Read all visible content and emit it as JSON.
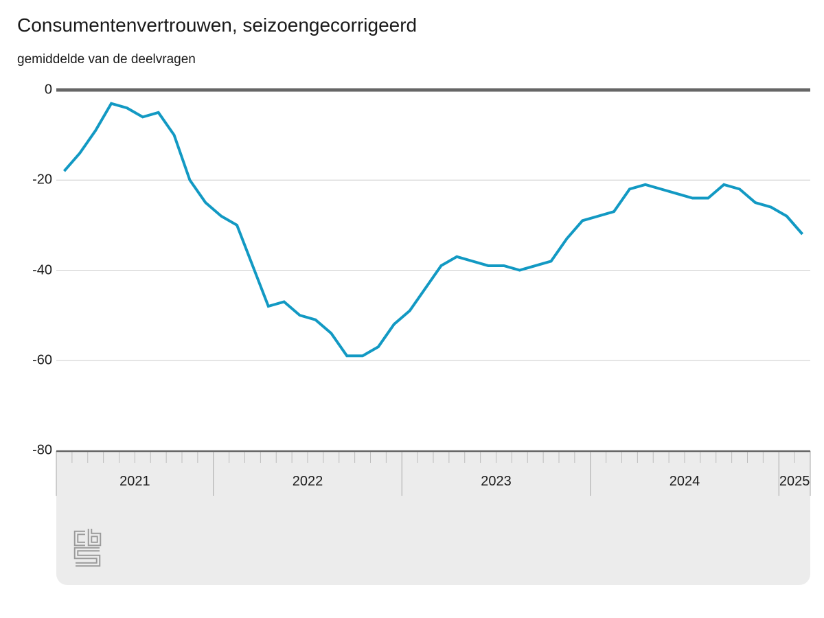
{
  "header": {
    "title": "Consumentenvertrouwen, seizoengecorrigeerd",
    "subtitle": "gemiddelde van de deelvragen"
  },
  "chart_data": {
    "type": "line",
    "title": "Consumentenvertrouwen, seizoengecorrigeerd",
    "subtitle": "gemiddelde van de deelvragen",
    "x_start": "2021-03",
    "x_end": "2025-02",
    "years": [
      {
        "label": "2021",
        "months": 10
      },
      {
        "label": "2022",
        "months": 12
      },
      {
        "label": "2023",
        "months": 12
      },
      {
        "label": "2024",
        "months": 12
      },
      {
        "label": "2025",
        "months": 2
      }
    ],
    "series": [
      {
        "name": "consumentenvertrouwen",
        "color": "#1299c3",
        "values": [
          -18,
          -14,
          -9,
          -3,
          -4,
          -6,
          -5,
          -10,
          -20,
          -25,
          -28,
          -30,
          -39,
          -48,
          -47,
          -50,
          -51,
          -54,
          -59,
          -59,
          -57,
          -52,
          -49,
          -44,
          -39,
          -37,
          -38,
          -39,
          -39,
          -40,
          -39,
          -38,
          -33,
          -29,
          -28,
          -27,
          -22,
          -21,
          -22,
          -23,
          -24,
          -24,
          -21,
          -22,
          -25,
          -26,
          -28,
          -32
        ]
      }
    ],
    "y_ticks": [
      0,
      -20,
      -40,
      -60,
      -80
    ],
    "ylim": [
      -80,
      0
    ],
    "grid": "horizontal",
    "zero_line": true,
    "legend_position": "none"
  },
  "footer": {
    "logo": "cbs-logo"
  },
  "colors": {
    "line": "#1299c3",
    "zero_line": "#666666",
    "gridline": "#cccccc",
    "band_bg": "#ececec",
    "band_border": "#666666",
    "tick": "#bdbdbd",
    "separator": "#a8a8a8",
    "logo": "#9a9a9a",
    "text": "#1a1a1a"
  }
}
